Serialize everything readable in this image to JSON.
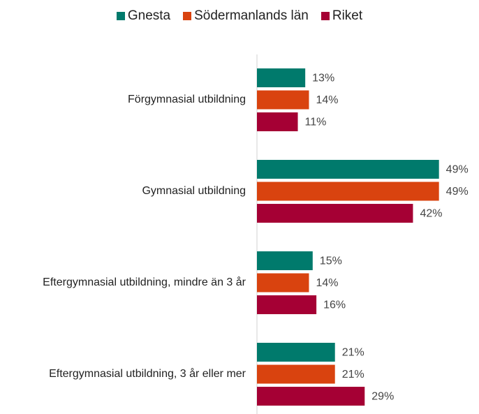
{
  "chart_data": {
    "type": "bar",
    "orientation": "horizontal",
    "categories": [
      "Förgymnasial utbildning",
      "Gymnasial utbildning",
      "Eftergymnasial utbildning, mindre än 3 år",
      "Eftergymnasial utbildning, 3 år eller mer"
    ],
    "series": [
      {
        "name": "Gnesta",
        "color": "#007a6c",
        "values": [
          13,
          49,
          15,
          21
        ],
        "value_labels": [
          "13%",
          "49%",
          "15%",
          "21%"
        ]
      },
      {
        "name": "Södermanlands län",
        "color": "#d9430f",
        "values": [
          14,
          49,
          14,
          21
        ],
        "value_labels": [
          "14%",
          "49%",
          "14%",
          "21%"
        ]
      },
      {
        "name": "Riket",
        "color": "#a50034",
        "values": [
          11,
          42,
          16,
          29
        ],
        "value_labels": [
          "11%",
          "42%",
          "16%",
          "29%"
        ]
      }
    ],
    "xlim": [
      0,
      50
    ],
    "legend": "top"
  }
}
